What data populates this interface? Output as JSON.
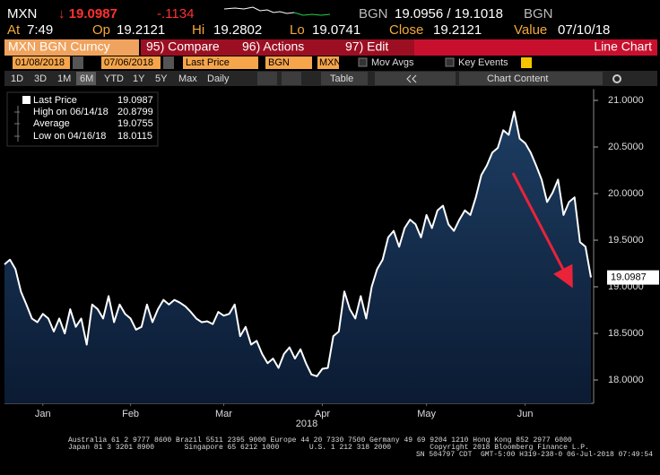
{
  "header": {
    "ticker": "MXN",
    "price": "↓ 19.0987",
    "change": "-.1134",
    "bid_source": "BGN",
    "bid_ask": "19.0956 / 19.1018",
    "ask_source": "BGN"
  },
  "quote": {
    "at_label": "At",
    "at": "7:49",
    "op_label": "Op",
    "op": "19.2121",
    "hi_label": "Hi",
    "hi": "19.2802",
    "lo_label": "Lo",
    "lo": "19.0741",
    "close_label": "Close",
    "close": "19.2121",
    "value_label": "Value",
    "value": "07/10/18"
  },
  "toolbar": {
    "security": "MXN BGN Curncy",
    "compare": "95) Compare",
    "actions": "96) Actions",
    "edit": "97) Edit",
    "chart_type": "Line Chart"
  },
  "controls": {
    "start": "01/08/2018",
    "end": "07/06/2018",
    "field": "Last Price",
    "source": "BGN",
    "currency": "MXN",
    "mov_avgs": "Mov Avgs",
    "key_events": "Key Events",
    "periods": [
      "1D",
      "3D",
      "1M",
      "6M",
      "YTD",
      "1Y",
      "5Y",
      "Max"
    ],
    "frequency": "Daily",
    "table": "Table",
    "chart_content": "Chart Content"
  },
  "chart_data": {
    "type": "area",
    "color": "#ffffff",
    "fill_top": "#1d3d62",
    "fill_bottom": "#0b1b33",
    "legend": [
      {
        "label": "Last Price",
        "value": "19.0987"
      },
      {
        "label": "High on 06/14/18",
        "value": "20.8799"
      },
      {
        "label": "Average",
        "value": "19.0755"
      },
      {
        "label": "Low on 04/16/18",
        "value": "18.0115"
      }
    ],
    "last_label": "19.0987",
    "xlabel": "2018",
    "xlim": [
      0,
      107
    ],
    "xticks": [
      {
        "value": 7,
        "label": "Jan"
      },
      {
        "value": 23,
        "label": "Feb"
      },
      {
        "value": 40,
        "label": "Mar"
      },
      {
        "value": 58,
        "label": "Apr"
      },
      {
        "value": 77,
        "label": "May"
      },
      {
        "value": 95,
        "label": "Jun"
      }
    ],
    "ylim": [
      17.75,
      21.12
    ],
    "yticks": [
      {
        "value": 18,
        "label": "18.0000"
      },
      {
        "value": 18.5,
        "label": "18.5000"
      },
      {
        "value": 19,
        "label": "19.0000"
      },
      {
        "value": 19.5,
        "label": "19.5000"
      },
      {
        "value": 20,
        "label": "20.0000"
      },
      {
        "value": 20.5,
        "label": "20.5000"
      },
      {
        "value": 21,
        "label": "21.0000"
      }
    ],
    "grid": false,
    "values": [
      19.24,
      19.29,
      19.19,
      18.95,
      18.81,
      18.66,
      18.62,
      18.71,
      18.66,
      18.52,
      18.66,
      18.5,
      18.76,
      18.57,
      18.66,
      18.38,
      18.81,
      18.76,
      18.66,
      18.9,
      18.62,
      18.81,
      18.71,
      18.66,
      18.54,
      18.57,
      18.81,
      18.62,
      18.76,
      18.86,
      18.81,
      18.86,
      18.83,
      18.79,
      18.73,
      18.66,
      18.62,
      18.63,
      18.6,
      18.73,
      18.69,
      18.71,
      18.81,
      18.47,
      18.57,
      18.38,
      18.42,
      18.28,
      18.18,
      18.23,
      18.13,
      18.28,
      18.35,
      18.23,
      18.33,
      18.18,
      18.06,
      18.04,
      18.12,
      18.13,
      18.47,
      18.52,
      18.95,
      18.76,
      18.66,
      18.9,
      18.66,
      19.0,
      19.19,
      19.29,
      19.53,
      19.6,
      19.43,
      19.63,
      19.72,
      19.67,
      19.53,
      19.77,
      19.63,
      19.82,
      19.87,
      19.67,
      19.6,
      19.72,
      19.82,
      19.77,
      19.96,
      20.2,
      20.3,
      20.44,
      20.49,
      20.68,
      20.63,
      20.88,
      20.59,
      20.54,
      20.44,
      20.3,
      20.15,
      19.91,
      20.01,
      20.15,
      19.77,
      19.91,
      19.96,
      19.48,
      19.43,
      19.1
    ]
  },
  "footer": {
    "lines": [
      "Australia 61 2 9777 8600 Brazil 5511 2395 9000 Europe 44 20 7330 7500 Germany 49 69 9204 1210 Hong Kong 852 2977 6000",
      "Japan 81 3 3201 8900       Singapore 65 6212 1000       U.S. 1 212 318 2000         Copyright 2018 Bloomberg Finance L.P.",
      "SN 504797 CDT  GMT-5:00 H319-238-0 06-Jul-2018 07:49:54"
    ]
  }
}
